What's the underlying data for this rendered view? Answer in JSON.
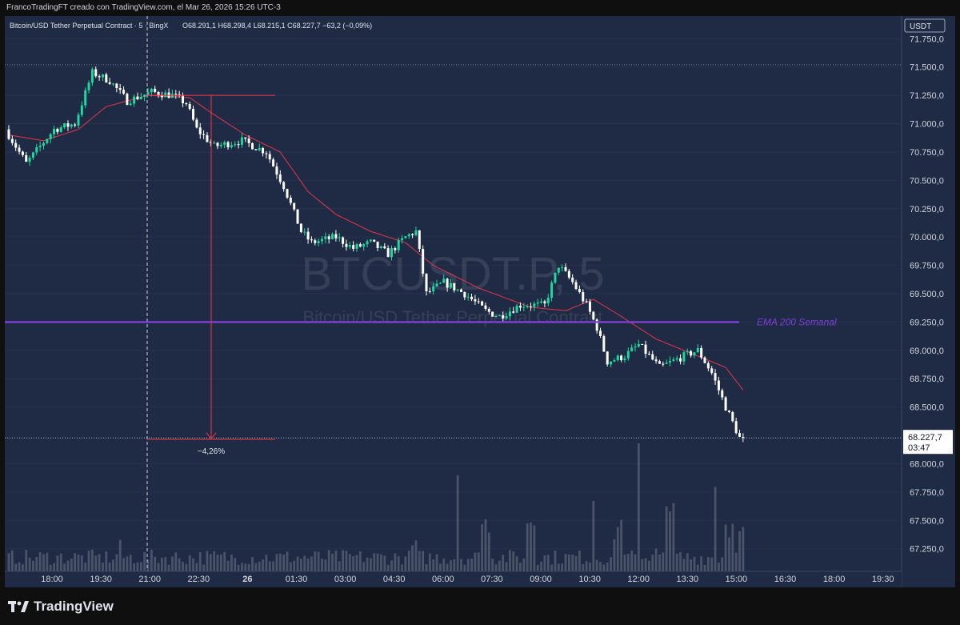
{
  "header": {
    "attribution": "FrancoTradingFT creado con TradingView.com, el Mar 26, 2026 15:26 UTC-3"
  },
  "legend": {
    "symbol_name": "Bitcoin/USD Tether Perpetual Contract · 5 · BingX",
    "ohlc_text": "O68.291,1  H68.298,4  L68.215,1  C68.227,7  −63,2 (−0,09%)",
    "up_color": "#1fd8a0",
    "down_color": "#ffffff"
  },
  "watermark": {
    "ticker": "BTCUSDT.P, 5",
    "description": "Bitcoin/USD Tether Perpetual Contract"
  },
  "price_axis": {
    "currency": "USDT",
    "last_price": "68.227,7",
    "countdown": "03:47"
  },
  "annotations": {
    "ema_label": "EMA 200 Semanal",
    "ema_color": "#7e3fd6",
    "measure_label": "−4,26%",
    "measure_color": "#f23645"
  },
  "brand": {
    "name": "TradingView"
  },
  "chart_data": {
    "type": "candlestick",
    "ylim": [
      67050,
      71950
    ],
    "y_ticks": [
      71750,
      71500,
      71250,
      71000,
      70750,
      70500,
      70250,
      70000,
      69750,
      69500,
      69250,
      69000,
      68750,
      68500,
      68000,
      67750,
      67500,
      67250
    ],
    "y_tick_labels": [
      "71.750,0",
      "71.500,0",
      "71.250,0",
      "71.000,0",
      "70.750,0",
      "70.500,0",
      "70.250,0",
      "70.000,0",
      "69.750,0",
      "69.500,0",
      "69.250,0",
      "69.000,0",
      "68.750,0",
      "68.500,0",
      "68.000,0",
      "67.750,0",
      "67.500,0",
      "67.250,0"
    ],
    "x_tick_labels": [
      "18:00",
      "19:30",
      "21:00",
      "22:30",
      "26",
      "01:30",
      "03:00",
      "04:30",
      "06:00",
      "07:30",
      "09:00",
      "10:30",
      "12:00",
      "13:30",
      "15:00",
      "16:30",
      "18:00",
      "19:30"
    ],
    "price_keypoints": [
      [
        0,
        70950
      ],
      [
        6,
        70650
      ],
      [
        10,
        70800
      ],
      [
        14,
        70950
      ],
      [
        20,
        71000
      ],
      [
        25,
        71450
      ],
      [
        30,
        71380
      ],
      [
        35,
        71200
      ],
      [
        42,
        71280
      ],
      [
        48,
        71250
      ],
      [
        52,
        71180
      ],
      [
        55,
        70950
      ],
      [
        60,
        70800
      ],
      [
        68,
        70850
      ],
      [
        75,
        70750
      ],
      [
        80,
        70450
      ],
      [
        85,
        70050
      ],
      [
        88,
        69950
      ],
      [
        95,
        70000
      ],
      [
        100,
        69900
      ],
      [
        105,
        69950
      ],
      [
        110,
        69850
      ],
      [
        115,
        70000
      ],
      [
        118,
        70050
      ],
      [
        121,
        69500
      ],
      [
        126,
        69600
      ],
      [
        132,
        69500
      ],
      [
        138,
        69350
      ],
      [
        142,
        69300
      ],
      [
        148,
        69400
      ],
      [
        155,
        69400
      ],
      [
        159,
        69750
      ],
      [
        163,
        69600
      ],
      [
        167,
        69400
      ],
      [
        170,
        69200
      ],
      [
        173,
        68900
      ],
      [
        178,
        68950
      ],
      [
        182,
        69050
      ],
      [
        188,
        68850
      ],
      [
        195,
        68950
      ],
      [
        199,
        69000
      ],
      [
        203,
        68800
      ],
      [
        207,
        68500
      ],
      [
        211,
        68227.7
      ]
    ],
    "ema_keypoints": [
      [
        0,
        70900
      ],
      [
        10,
        70850
      ],
      [
        20,
        70950
      ],
      [
        28,
        71150
      ],
      [
        40,
        71250
      ],
      [
        52,
        71230
      ],
      [
        58,
        71100
      ],
      [
        68,
        70900
      ],
      [
        78,
        70750
      ],
      [
        86,
        70400
      ],
      [
        94,
        70200
      ],
      [
        104,
        70050
      ],
      [
        114,
        69950
      ],
      [
        122,
        69750
      ],
      [
        135,
        69550
      ],
      [
        150,
        69380
      ],
      [
        160,
        69350
      ],
      [
        168,
        69450
      ],
      [
        176,
        69300
      ],
      [
        186,
        69100
      ],
      [
        198,
        68950
      ],
      [
        206,
        68850
      ],
      [
        211,
        68650
      ]
    ],
    "ema_weekly_200": 69250,
    "measure": {
      "high": 71250,
      "low": 68215,
      "change_percent": -4.26
    },
    "last_price": 68227.7,
    "volume_spikes": [
      [
        0.15,
        0.05
      ],
      [
        0.55,
        0.07
      ],
      [
        0.88,
        0.05
      ],
      [
        0.65,
        0.28
      ],
      [
        0.71,
        0.32
      ],
      [
        0.83,
        0.22
      ],
      [
        0.9,
        0.4
      ],
      [
        0.98,
        0.26
      ],
      [
        1.0,
        0.18
      ]
    ]
  }
}
